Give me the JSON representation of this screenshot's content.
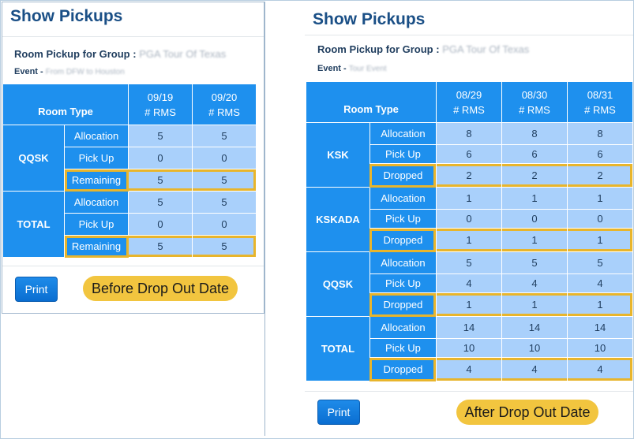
{
  "left": {
    "title": "Show Pickups",
    "group_label": "Room Pickup for Group :",
    "group_value": "PGA Tour Of Texas",
    "event_label": "Event -",
    "event_value": "From DFW to Houston",
    "header_room_type": "Room Type",
    "dates": [
      "09/19",
      "09/20"
    ],
    "rms_label": "# RMS",
    "rows": [
      {
        "type": "QQSK",
        "lines": [
          {
            "label": "Allocation",
            "values": [
              "5",
              "5"
            ]
          },
          {
            "label": "Pick Up",
            "values": [
              "0",
              "0"
            ]
          },
          {
            "label": "Remaining",
            "values": [
              "5",
              "5"
            ]
          }
        ]
      },
      {
        "type": "TOTAL",
        "lines": [
          {
            "label": "Allocation",
            "values": [
              "5",
              "5"
            ]
          },
          {
            "label": "Pick Up",
            "values": [
              "0",
              "0"
            ]
          },
          {
            "label": "Remaining",
            "values": [
              "5",
              "5"
            ]
          }
        ]
      }
    ],
    "print_label": "Print",
    "note": "Before Drop Out Date"
  },
  "right": {
    "title": "Show Pickups",
    "group_label": "Room Pickup for Group :",
    "group_value": "PGA Tour Of Texas",
    "event_label": "Event -",
    "event_value": "Tour Event",
    "header_room_type": "Room Type",
    "dates": [
      "08/29",
      "08/30",
      "08/31"
    ],
    "rms_label": "# RMS",
    "rows": [
      {
        "type": "KSK",
        "lines": [
          {
            "label": "Allocation",
            "values": [
              "8",
              "8",
              "8"
            ]
          },
          {
            "label": "Pick Up",
            "values": [
              "6",
              "6",
              "6"
            ]
          },
          {
            "label": "Dropped",
            "values": [
              "2",
              "2",
              "2"
            ]
          }
        ]
      },
      {
        "type": "KSKADA",
        "lines": [
          {
            "label": "Allocation",
            "values": [
              "1",
              "1",
              "1"
            ]
          },
          {
            "label": "Pick Up",
            "values": [
              "0",
              "0",
              "0"
            ]
          },
          {
            "label": "Dropped",
            "values": [
              "1",
              "1",
              "1"
            ]
          }
        ]
      },
      {
        "type": "QQSK",
        "lines": [
          {
            "label": "Allocation",
            "values": [
              "5",
              "5",
              "5"
            ]
          },
          {
            "label": "Pick Up",
            "values": [
              "4",
              "4",
              "4"
            ]
          },
          {
            "label": "Dropped",
            "values": [
              "1",
              "1",
              "1"
            ]
          }
        ]
      },
      {
        "type": "TOTAL",
        "lines": [
          {
            "label": "Allocation",
            "values": [
              "14",
              "14",
              "14"
            ]
          },
          {
            "label": "Pick Up",
            "values": [
              "10",
              "10",
              "10"
            ]
          },
          {
            "label": "Dropped",
            "values": [
              "4",
              "4",
              "4"
            ]
          }
        ]
      }
    ],
    "print_label": "Print",
    "note": "After Drop Out Date"
  },
  "colors": {
    "header_blue": "#1e90ee",
    "cell_blue": "#a9d0fb",
    "highlight": "#e8b52c",
    "note": "#f2c53f",
    "title": "#1a4f86"
  }
}
